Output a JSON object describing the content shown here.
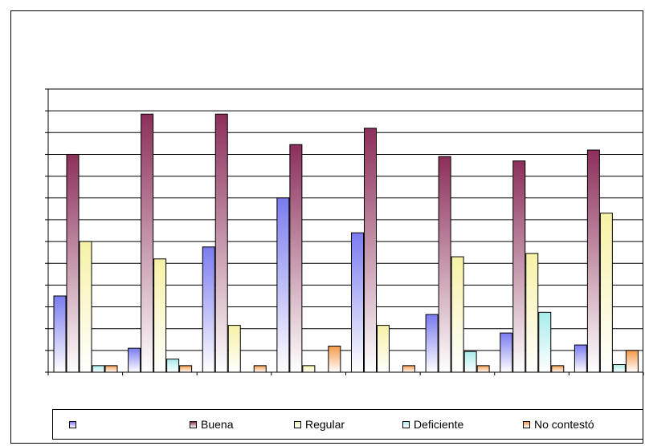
{
  "chart_data": {
    "type": "bar",
    "title": "",
    "xlabel": "",
    "ylabel": "",
    "ylim": [
      0,
      26
    ],
    "grid": true,
    "legend_placement": "bottom",
    "categories": [
      "",
      "",
      "",
      "",
      "",
      "",
      "",
      ""
    ],
    "series": [
      {
        "name": "",
        "colors": [
          "#7b7bf0",
          "#ffffff"
        ],
        "values": [
          7,
          2.2,
          11.5,
          16,
          12.8,
          5.3,
          3.6,
          2.5
        ]
      },
      {
        "name": "Buena",
        "colors": [
          "#8c2f5a",
          "#ffffff"
        ],
        "values": [
          20,
          23.7,
          23.7,
          20.9,
          22.4,
          19.8,
          19.4,
          20.4
        ]
      },
      {
        "name": "Regular",
        "colors": [
          "#f7f2a6",
          "#ffffff"
        ],
        "values": [
          12,
          10.4,
          4.3,
          0.6,
          4.3,
          10.6,
          10.9,
          14.6
        ]
      },
      {
        "name": "Deficiente",
        "colors": [
          "#a8ecec",
          "#ffffff"
        ],
        "values": [
          0.6,
          1.2,
          0,
          0,
          0,
          1.9,
          5.5,
          0.7
        ]
      },
      {
        "name": "No contestó",
        "colors": [
          "#f59a4a",
          "#ffffff"
        ],
        "values": [
          0.6,
          0.6,
          0.6,
          2.4,
          0.6,
          0.6,
          0.6,
          2
        ]
      }
    ]
  }
}
